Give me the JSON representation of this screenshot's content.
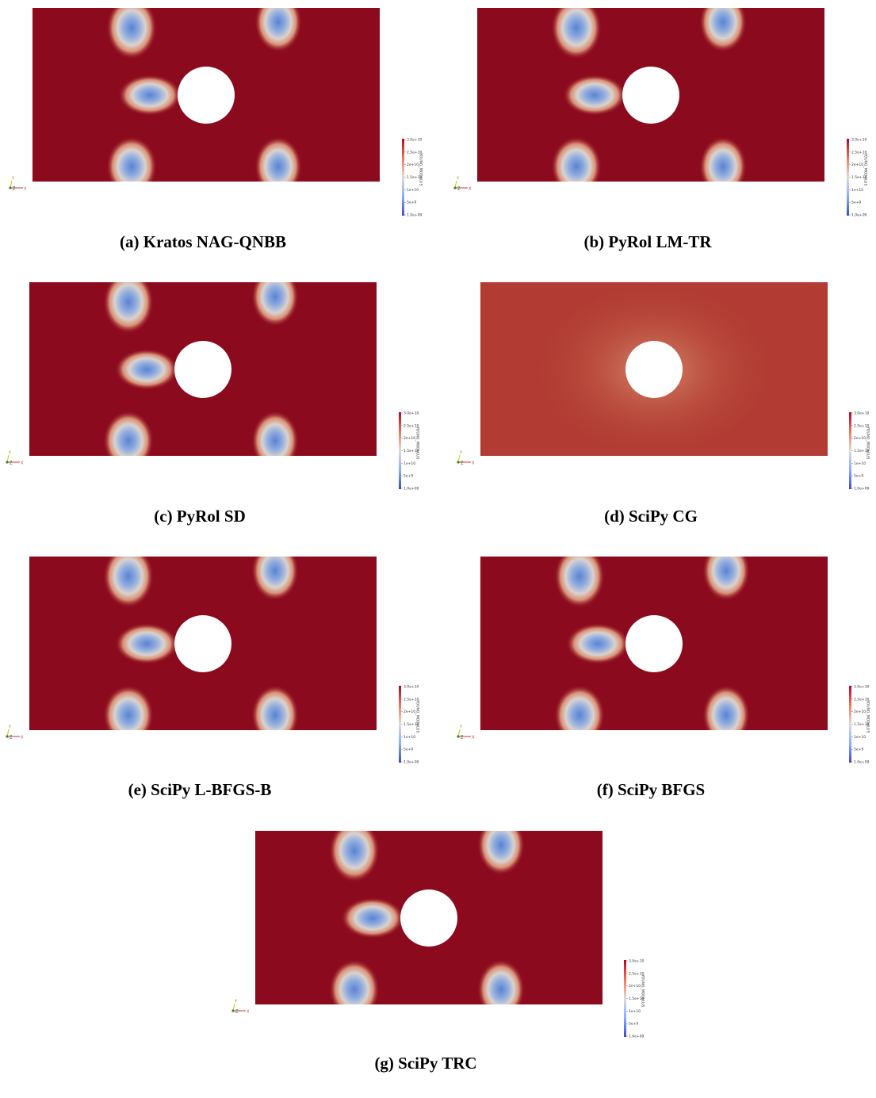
{
  "figure": {
    "panels": [
      {
        "caption": "(a) Kratos NAG-QNBB",
        "colorbar": {
          "title": "YOUNG_MODULUS",
          "ticks": [
            "3.0e+10",
            "2.5e+10",
            "2e+10",
            "1.5e+10",
            "1e+10",
            "5e+9",
            "1.0e+09"
          ]
        },
        "axes": {
          "y": "Y",
          "z": "Z",
          "x": "X"
        }
      },
      {
        "caption": "(b) PyRol LM-TR",
        "colorbar": {
          "title": "YOUNG_MODULUS",
          "ticks": [
            "3.0e+10",
            "2.5e+10",
            "2e+10",
            "1.5e+10",
            "1e+10",
            "5e+9",
            "1.0e+09"
          ]
        },
        "axes": {
          "y": "Y",
          "z": "Z",
          "x": "X"
        }
      },
      {
        "caption": "(c) PyRol SD",
        "colorbar": {
          "title": "YOUNG_MODULUS",
          "ticks": [
            "3.0e+10",
            "2.5e+10",
            "2e+10",
            "1.5e+10",
            "1e+10",
            "5e+9",
            "1.0e+09"
          ]
        },
        "axes": {
          "y": "Y",
          "z": "Z",
          "x": "X"
        }
      },
      {
        "caption": "(d) SciPy CG",
        "colorbar": {
          "title": "YOUNG_MODULUS",
          "ticks": [
            "3.0e+10",
            "2.5e+10",
            "2e+10",
            "1.5e+10",
            "1e+10",
            "5e+9",
            "1.0e+09"
          ]
        },
        "axes": {
          "y": "Y",
          "z": "Z",
          "x": "X"
        }
      },
      {
        "caption": "(e) SciPy L-BFGS-B",
        "colorbar": {
          "title": "YOUNG_MODULUS",
          "ticks": [
            "3.0e+10",
            "2.5e+10",
            "2e+10",
            "1.5e+10",
            "1e+10",
            "5e+9",
            "1.0e+09"
          ]
        },
        "axes": {
          "y": "Y",
          "z": "Z",
          "x": "X"
        }
      },
      {
        "caption": "(f) SciPy BFGS",
        "colorbar": {
          "title": "YOUNG_MODULUS",
          "ticks": [
            "3.0e+10",
            "2.5e+10",
            "2e+10",
            "1.5e+10",
            "1e+10",
            "5e+9",
            "1.0e+09"
          ]
        },
        "axes": {
          "y": "Y",
          "z": "Z",
          "x": "X"
        }
      },
      {
        "caption": "(g) SciPy TRC",
        "colorbar": {
          "title": "YOUNG_MODULUS",
          "ticks": [
            "3.0e+10",
            "2.5e+10",
            "2e+10",
            "1.5e+10",
            "1e+10",
            "5e+9",
            "1.0e+09"
          ]
        },
        "axes": {
          "y": "Y",
          "z": "Z",
          "x": "X"
        }
      }
    ]
  }
}
